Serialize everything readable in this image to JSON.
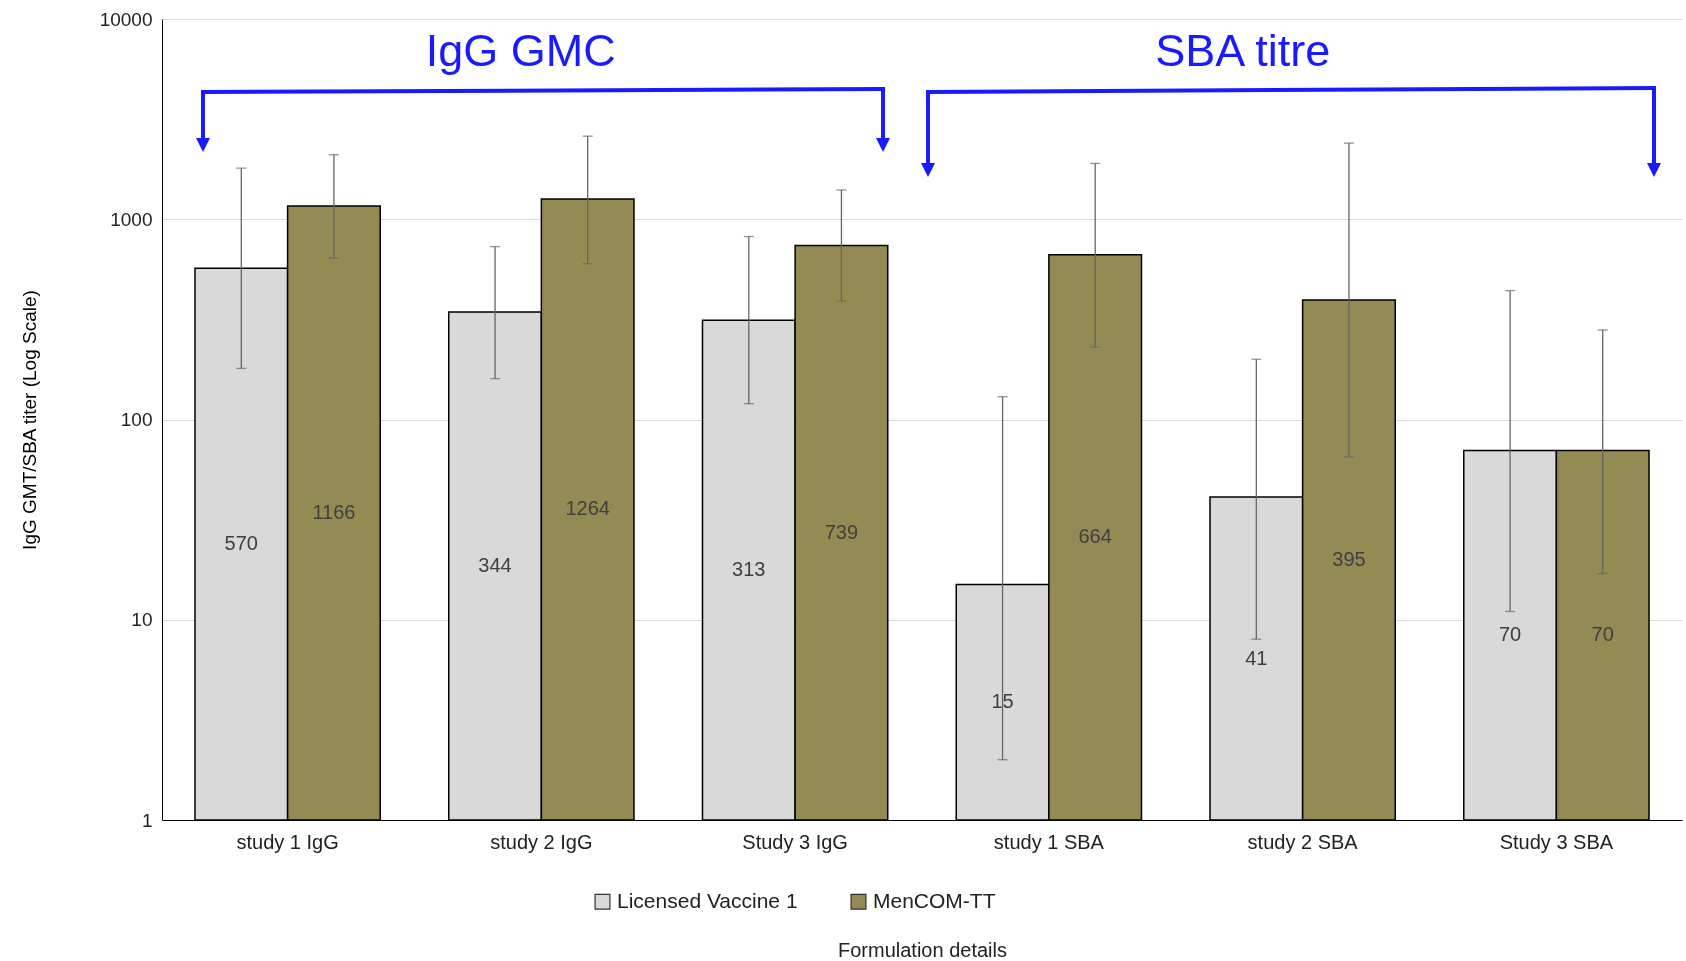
{
  "chart_data": {
    "type": "bar",
    "ylabel": "IgG GMT/SBA titer (Log Scale)",
    "xlabel": "Formulation details",
    "categories": [
      "study 1 IgG",
      "study 2 IgG",
      "Study 3 IgG",
      "study 1 SBA",
      "study 2 SBA",
      "Study 3 SBA"
    ],
    "series": [
      {
        "name": "Licensed Vaccine 1",
        "color": "#d9d9d9",
        "values": [
          570,
          344,
          313,
          15,
          41,
          70
        ],
        "errors": [
          [
            180,
            1800
          ],
          [
            160,
            730
          ],
          [
            120,
            820
          ],
          [
            2,
            130
          ],
          [
            8,
            200
          ],
          [
            11,
            440
          ]
        ]
      },
      {
        "name": "MenCOM-TT",
        "color": "#948a54",
        "values": [
          1166,
          1264,
          739,
          664,
          395,
          70
        ],
        "errors": [
          [
            640,
            2100
          ],
          [
            600,
            2600
          ],
          [
            390,
            1400
          ],
          [
            230,
            1900
          ],
          [
            65,
            2400
          ],
          [
            17,
            280
          ]
        ]
      }
    ],
    "annotations": [
      "IgG GMC",
      "SBA titre"
    ],
    "log": true,
    "ylim": [
      1,
      10000
    ],
    "yticks": [
      1,
      10,
      100,
      1000,
      10000
    ],
    "grid": "y",
    "legend": "bottom",
    "data_labels": true
  }
}
